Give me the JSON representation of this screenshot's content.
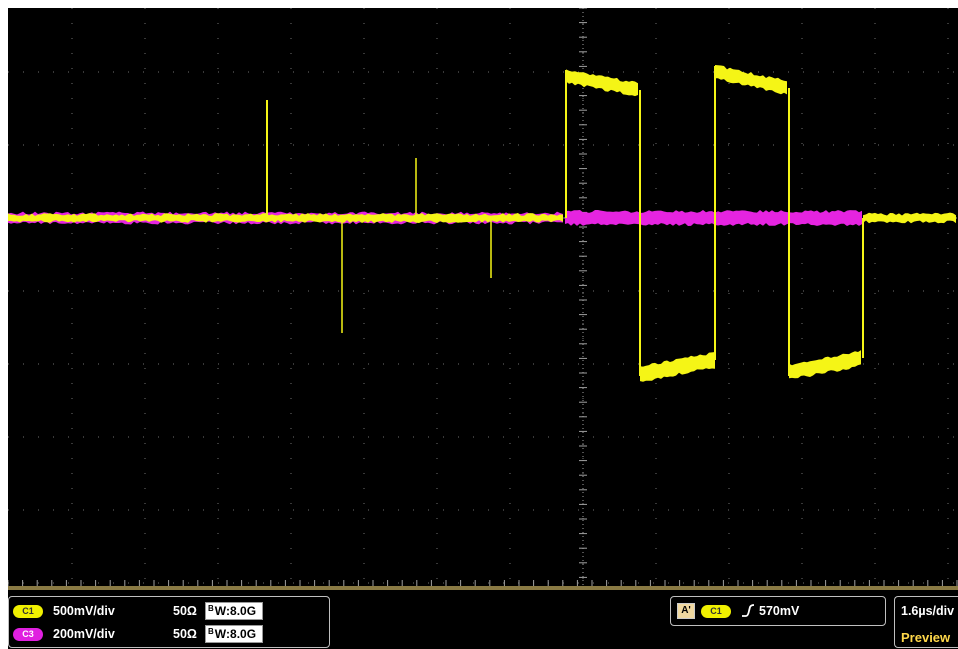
{
  "colors": {
    "ch1": "#f5f516",
    "ch3": "#e524e0",
    "grid": "#8c8c8c",
    "background": "#000000"
  },
  "grid": {
    "h_divisions": 10,
    "v_divisions": 8
  },
  "channels": [
    {
      "id": "C1",
      "scale": "500mV/div",
      "impedance": "50Ω",
      "bw_prefix": "B",
      "bw_sub": "W",
      "bw_value": ":8.0G"
    },
    {
      "id": "C3",
      "scale": "200mV/div",
      "impedance": "50Ω",
      "bw_prefix": "B",
      "bw_sub": "W",
      "bw_value": ":8.0G"
    }
  ],
  "trigger": {
    "badge": "A'",
    "channel": "C1",
    "level": "570mV"
  },
  "timebase": {
    "scale": "1.6µs/div",
    "mode": "Preview"
  }
}
